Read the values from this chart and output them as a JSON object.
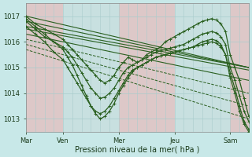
{
  "title": "Pression niveau de la mer( hPa )",
  "background_color": "#c8e8e8",
  "plot_bg_color": "#c8e8e8",
  "grid_color": "#a8cccc",
  "line_color": "#2a6020",
  "xlim": [
    0,
    96
  ],
  "ylim": [
    1012.5,
    1017.5
  ],
  "yticks": [
    1013,
    1014,
    1015,
    1016,
    1017
  ],
  "xtick_labels": [
    "Mar",
    "Ven",
    "Mer",
    "Jeu",
    "Sam"
  ],
  "xtick_positions": [
    0,
    16,
    40,
    64,
    88
  ],
  "series": [
    {
      "x": [
        0,
        96
      ],
      "y": [
        1017.0,
        1015.0
      ],
      "dashed": false,
      "marker": false,
      "lw": 0.8
    },
    {
      "x": [
        0,
        96
      ],
      "y": [
        1016.8,
        1015.0
      ],
      "dashed": false,
      "marker": false,
      "lw": 0.8
    },
    {
      "x": [
        0,
        96
      ],
      "y": [
        1016.6,
        1015.0
      ],
      "dashed": false,
      "marker": false,
      "lw": 0.8
    },
    {
      "x": [
        0,
        96
      ],
      "y": [
        1016.5,
        1014.9
      ],
      "dashed": false,
      "marker": false,
      "lw": 0.8
    },
    {
      "x": [
        0,
        96
      ],
      "y": [
        1016.3,
        1014.5
      ],
      "dashed": false,
      "marker": false,
      "lw": 0.8
    },
    {
      "x": [
        0,
        96
      ],
      "y": [
        1016.1,
        1014.0
      ],
      "dashed": true,
      "marker": false,
      "lw": 0.7
    },
    {
      "x": [
        0,
        96
      ],
      "y": [
        1015.9,
        1013.5
      ],
      "dashed": true,
      "marker": false,
      "lw": 0.7
    },
    {
      "x": [
        0,
        96
      ],
      "y": [
        1015.7,
        1013.0
      ],
      "dashed": true,
      "marker": false,
      "lw": 0.7
    },
    {
      "x": [
        0,
        4,
        8,
        12,
        16,
        18,
        20,
        22,
        24,
        26,
        28,
        30,
        32,
        34,
        36,
        38,
        40,
        42,
        44,
        46,
        48,
        50,
        52,
        54,
        56,
        58,
        60,
        62,
        64,
        66,
        68,
        70,
        72,
        74,
        76,
        78,
        80,
        82,
        84,
        86,
        88,
        90,
        92,
        94,
        96
      ],
      "y": [
        1017.0,
        1016.7,
        1016.5,
        1016.3,
        1016.1,
        1015.9,
        1015.7,
        1015.5,
        1015.3,
        1015.1,
        1014.9,
        1014.7,
        1014.5,
        1014.4,
        1014.5,
        1014.7,
        1015.0,
        1015.2,
        1015.4,
        1015.3,
        1015.2,
        1015.3,
        1015.5,
        1015.6,
        1015.7,
        1015.8,
        1016.0,
        1016.1,
        1016.2,
        1016.3,
        1016.4,
        1016.5,
        1016.6,
        1016.7,
        1016.8,
        1016.85,
        1016.9,
        1016.85,
        1016.7,
        1016.4,
        1015.5,
        1015.0,
        1014.5,
        1013.8,
        1013.1
      ],
      "dashed": false,
      "marker": true,
      "lw": 0.9
    },
    {
      "x": [
        0,
        4,
        8,
        12,
        16,
        18,
        20,
        22,
        24,
        26,
        28,
        30,
        32,
        34,
        36,
        38,
        40,
        42,
        44,
        46,
        48,
        50,
        52,
        54,
        56,
        58,
        60,
        62,
        64,
        66,
        68,
        70,
        72,
        74,
        76,
        78,
        80,
        82,
        84,
        86,
        88,
        90,
        92,
        94,
        96
      ],
      "y": [
        1016.8,
        1016.5,
        1016.2,
        1016.0,
        1015.8,
        1015.6,
        1015.4,
        1015.1,
        1014.8,
        1014.5,
        1014.2,
        1014.0,
        1013.8,
        1013.85,
        1014.0,
        1014.2,
        1014.5,
        1014.8,
        1015.0,
        1015.1,
        1015.2,
        1015.3,
        1015.4,
        1015.5,
        1015.6,
        1015.65,
        1015.7,
        1015.75,
        1015.8,
        1015.85,
        1015.9,
        1016.0,
        1016.1,
        1016.2,
        1016.3,
        1016.35,
        1016.4,
        1016.35,
        1016.2,
        1015.9,
        1015.0,
        1014.5,
        1013.9,
        1013.3,
        1012.9
      ],
      "dashed": false,
      "marker": true,
      "lw": 0.9
    },
    {
      "x": [
        0,
        4,
        8,
        12,
        16,
        18,
        20,
        22,
        24,
        26,
        28,
        30,
        32,
        34,
        36,
        38,
        40,
        42,
        44,
        46,
        48,
        50,
        52,
        54,
        56,
        58,
        60,
        62,
        64,
        66,
        68,
        70,
        72,
        74,
        76,
        78,
        80,
        82,
        84,
        86,
        88,
        90,
        92,
        94,
        96
      ],
      "y": [
        1016.6,
        1016.3,
        1016.0,
        1015.6,
        1015.3,
        1015.0,
        1014.7,
        1014.4,
        1014.1,
        1013.8,
        1013.5,
        1013.3,
        1013.2,
        1013.3,
        1013.5,
        1013.8,
        1014.1,
        1014.4,
        1014.7,
        1014.9,
        1015.0,
        1015.1,
        1015.2,
        1015.3,
        1015.4,
        1015.45,
        1015.5,
        1015.55,
        1015.6,
        1015.65,
        1015.7,
        1015.75,
        1015.8,
        1015.85,
        1015.9,
        1015.95,
        1016.0,
        1015.95,
        1015.8,
        1015.5,
        1014.8,
        1014.2,
        1013.5,
        1012.9,
        1012.6
      ],
      "dashed": false,
      "marker": true,
      "lw": 0.9
    },
    {
      "x": [
        0,
        4,
        8,
        12,
        16,
        18,
        20,
        22,
        24,
        26,
        28,
        30,
        32,
        34,
        36,
        38,
        40,
        42,
        44,
        46,
        48,
        50,
        52,
        54,
        56,
        58,
        60,
        62,
        64,
        66,
        68,
        70,
        72,
        74,
        76,
        78,
        80,
        82,
        84,
        86,
        88,
        90,
        92,
        94,
        96
      ],
      "y": [
        1016.9,
        1016.6,
        1016.3,
        1016.0,
        1015.7,
        1015.4,
        1015.1,
        1014.7,
        1014.3,
        1013.9,
        1013.5,
        1013.2,
        1013.0,
        1013.1,
        1013.3,
        1013.6,
        1014.0,
        1014.3,
        1014.6,
        1014.85,
        1015.0,
        1015.1,
        1015.2,
        1015.3,
        1015.4,
        1015.45,
        1015.5,
        1015.55,
        1015.6,
        1015.65,
        1015.7,
        1015.75,
        1015.8,
        1015.9,
        1016.0,
        1016.05,
        1016.1,
        1016.05,
        1015.9,
        1015.5,
        1014.6,
        1014.0,
        1013.3,
        1012.8,
        1012.5
      ],
      "dashed": false,
      "marker": true,
      "lw": 0.9
    }
  ]
}
